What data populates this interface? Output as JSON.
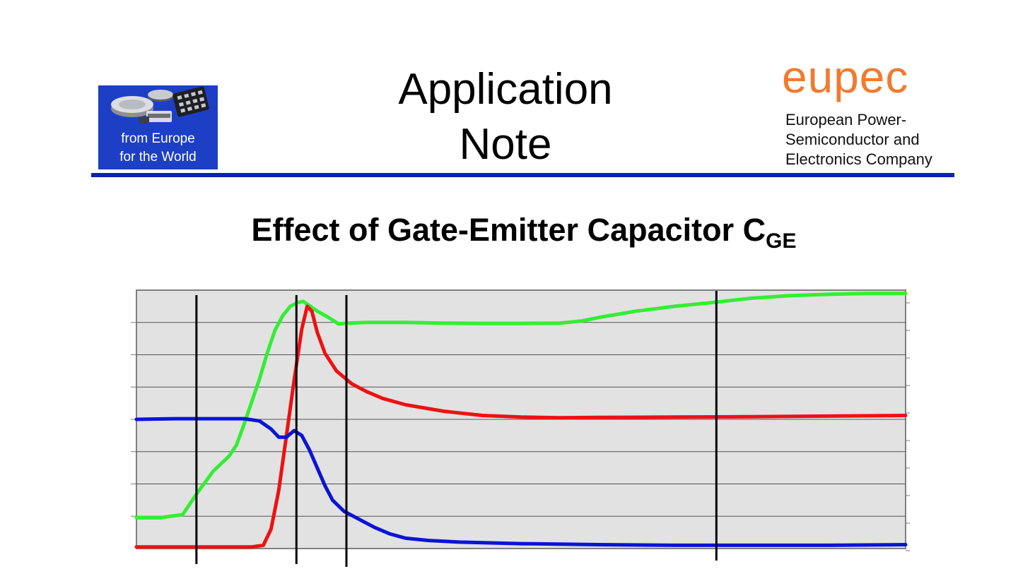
{
  "header": {
    "logo_line1": "from Europe",
    "logo_line2": "for the World",
    "title_line1": "Application",
    "title_line2": "Note",
    "brand_name": "eupec",
    "brand_line1": "European Power-",
    "brand_line2": "Semiconductor and",
    "brand_line3": "Electronics Company"
  },
  "colors": {
    "logo_background": "#1c3fc6",
    "header_rule": "#0a23b4",
    "brand": "#f07b2e",
    "plot_background": "#e2e2e2",
    "green_trace": "#33ee33",
    "red_trace": "#ee1111",
    "blue_trace": "#0a14d6"
  },
  "chart_data": {
    "type": "line",
    "title": "Effect of Gate-Emitter Capacitor C",
    "title_subscript": "GE",
    "xlabel": "",
    "ylabel": "",
    "xlim": [
      0,
      100
    ],
    "ylim": [
      0,
      8
    ],
    "grid": true,
    "legend": "none",
    "tick_labels": "none",
    "marker_lines_x": [
      7.8,
      20.8,
      27.3,
      75.4
    ],
    "series": [
      {
        "color": "#33ee33",
        "x": [
          0,
          3,
          6,
          8,
          10,
          12,
          13,
          14,
          15,
          16,
          17,
          18,
          19,
          20,
          21,
          21.7,
          22.3,
          23.5,
          25,
          26.3,
          27.5,
          30,
          35,
          40,
          45,
          50,
          55,
          58,
          60,
          65,
          70,
          75,
          80,
          85,
          90,
          95,
          100
        ],
        "y": [
          0.95,
          0.95,
          1.05,
          1.75,
          2.4,
          2.85,
          3.2,
          3.85,
          4.55,
          5.25,
          6.05,
          6.75,
          7.2,
          7.5,
          7.62,
          7.65,
          7.55,
          7.35,
          7.15,
          6.95,
          6.98,
          7.0,
          7.0,
          6.98,
          6.97,
          6.97,
          6.98,
          7.05,
          7.15,
          7.35,
          7.5,
          7.62,
          7.75,
          7.83,
          7.87,
          7.9,
          7.9
        ]
      },
      {
        "color": "#ee1111",
        "x": [
          0,
          5,
          10,
          15,
          16.5,
          17.5,
          18.5,
          19.5,
          20.5,
          21.5,
          22.2,
          22.8,
          23.5,
          24.5,
          26,
          28,
          30,
          32,
          35,
          40,
          45,
          50,
          55,
          60,
          70,
          80,
          90,
          100
        ],
        "y": [
          0.05,
          0.05,
          0.05,
          0.05,
          0.1,
          0.6,
          1.8,
          3.5,
          5.2,
          6.8,
          7.5,
          7.35,
          6.7,
          6.05,
          5.5,
          5.1,
          4.85,
          4.65,
          4.45,
          4.25,
          4.12,
          4.07,
          4.05,
          4.06,
          4.07,
          4.08,
          4.1,
          4.12
        ]
      },
      {
        "color": "#0a14d6",
        "x": [
          0,
          5,
          10,
          14,
          16,
          17.5,
          18.5,
          19.5,
          20.5,
          21.5,
          22.5,
          23.5,
          24.5,
          25.5,
          27,
          29,
          31,
          33,
          35,
          38,
          42,
          50,
          60,
          70,
          80,
          90,
          100
        ],
        "y": [
          4.0,
          4.02,
          4.02,
          4.02,
          3.95,
          3.7,
          3.45,
          3.45,
          3.65,
          3.5,
          3.05,
          2.5,
          1.95,
          1.5,
          1.15,
          0.9,
          0.65,
          0.45,
          0.32,
          0.25,
          0.2,
          0.15,
          0.12,
          0.1,
          0.1,
          0.1,
          0.12
        ]
      }
    ]
  }
}
